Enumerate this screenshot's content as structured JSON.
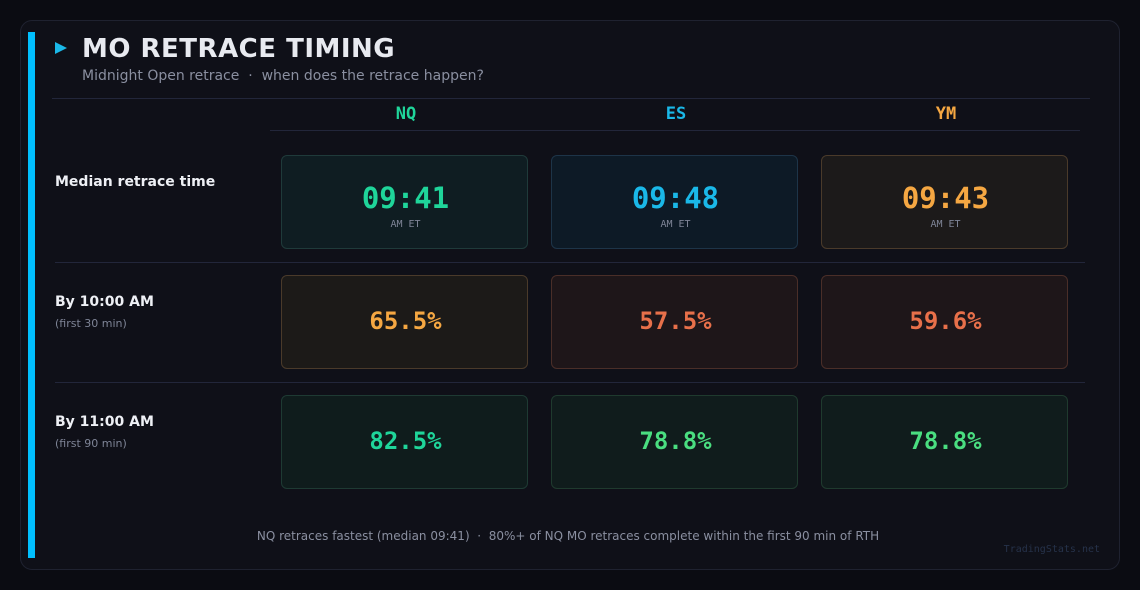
{
  "header": {
    "title": "MO RETRACE TIMING",
    "subtitle": "Midnight Open retrace  ·  when does the retrace happen?"
  },
  "table": {
    "columns": [
      "NQ",
      "ES",
      "YM"
    ],
    "rows": [
      {
        "label": "Median retrace time",
        "cells": [
          {
            "value": "09:41",
            "unit": "AM ET"
          },
          {
            "value": "09:48",
            "unit": "AM ET"
          },
          {
            "value": "09:43",
            "unit": "AM ET"
          }
        ]
      },
      {
        "label": "By 10:00 AM",
        "sublabel": "(first 30 min)",
        "cells": [
          {
            "value": "65.5%"
          },
          {
            "value": "57.5%"
          },
          {
            "value": "59.6%"
          }
        ]
      },
      {
        "label": "By 11:00 AM",
        "sublabel": "(first 90 min)",
        "cells": [
          {
            "value": "82.5%"
          },
          {
            "value": "78.8%"
          },
          {
            "value": "78.8%"
          }
        ]
      }
    ]
  },
  "footer": {
    "note": "NQ retraces fastest (median 09:41)  ·  80%+ of NQ MO retraces complete within the first 90 min of RTH",
    "watermark": "TradingStats.net"
  }
}
